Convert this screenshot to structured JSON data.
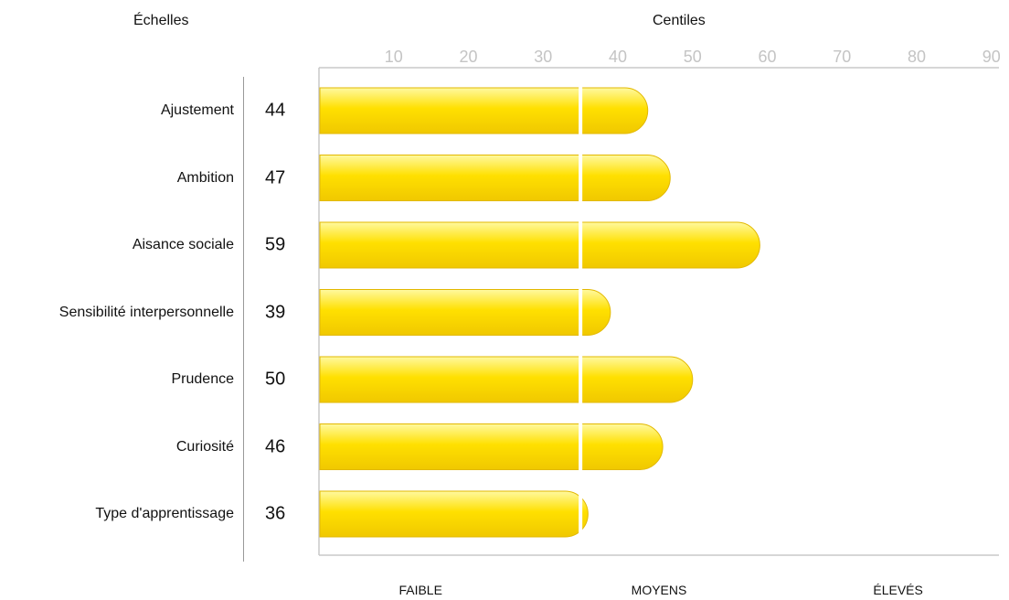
{
  "headers": {
    "scales": "Échelles",
    "centiles": "Centiles"
  },
  "bands": [
    "FAIBLE",
    "MOYENS",
    "ÉLEVÉS"
  ],
  "colors": {
    "bar_top": "#fff9a0",
    "bar_mid": "#ffe000",
    "bar_bottom": "#f0c800",
    "bar_stroke": "#e2b800",
    "axis": "#c8c8c8",
    "divider": "#ffffff",
    "tick_label": "#c4c4c4"
  },
  "chart_data": {
    "type": "bar",
    "orientation": "horizontal",
    "categories": [
      "Ajustement",
      "Ambition",
      "Aisance sociale",
      "Sensibilité interpersonnelle",
      "Prudence",
      "Curiosité",
      "Type d'apprentissage"
    ],
    "values": [
      44,
      47,
      59,
      39,
      50,
      46,
      36
    ],
    "score_labels": [
      "44",
      "47",
      "59",
      "39",
      "50",
      "46",
      "36"
    ],
    "title": "",
    "xlabel": "Centiles",
    "ylabel": "Échelles",
    "xticks": [
      "10",
      "20",
      "30",
      "40",
      "50",
      "60",
      "70",
      "80",
      "90"
    ],
    "xtick_values": [
      10,
      20,
      30,
      40,
      50,
      60,
      70,
      80,
      90
    ],
    "xlim": [
      0,
      91
    ],
    "band_boundary": 35,
    "grid": false,
    "legend": "none"
  }
}
